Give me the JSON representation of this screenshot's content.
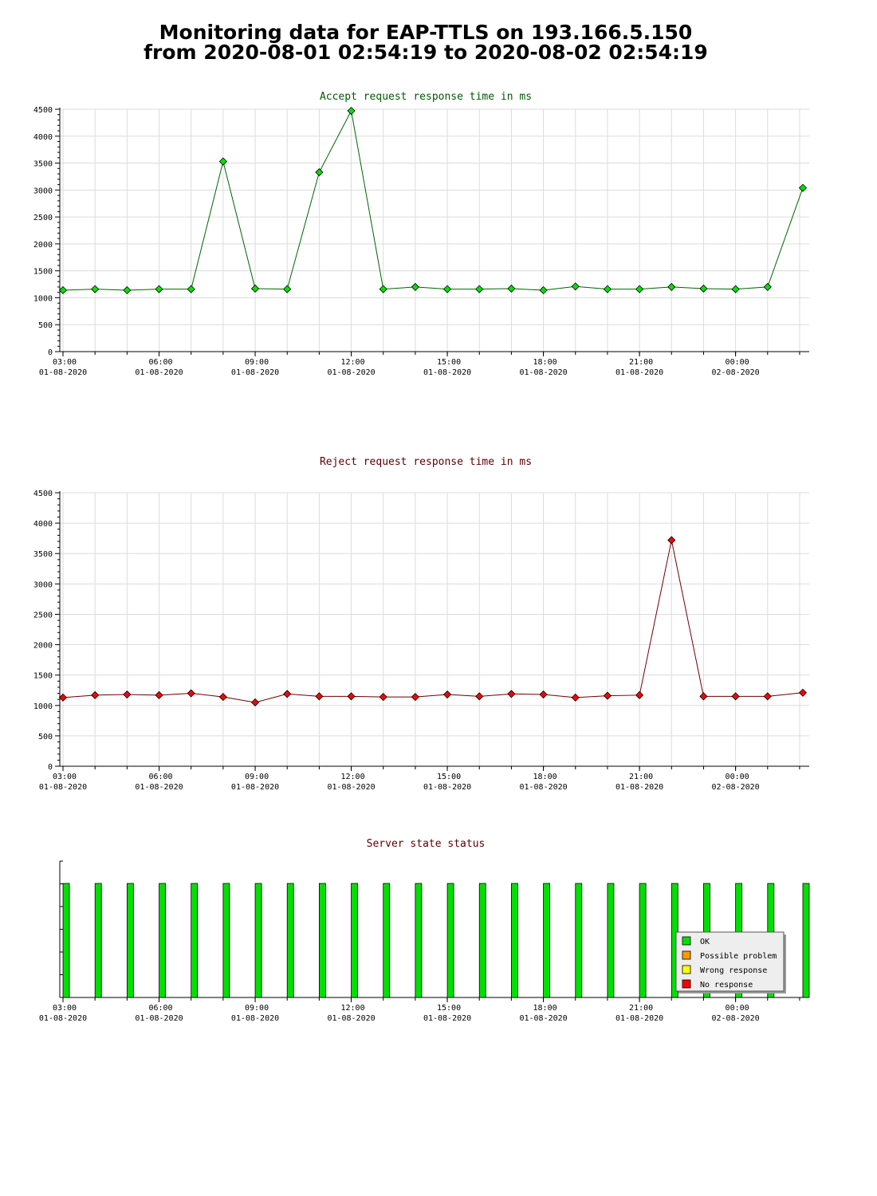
{
  "header": {
    "title_line1": "Monitoring data for EAP-TTLS on 193.166.5.150",
    "title_line2": "from 2020-08-01 02:54:19 to 2020-08-02 02:54:19"
  },
  "colors": {
    "accept_title": "#005a00",
    "accept_line": "#006400",
    "accept_marker": "#00e000",
    "reject_title": "#5a0000",
    "reject_line": "#6a0000",
    "reject_marker": "#ff0000",
    "status_title": "#5a0000",
    "grid": "#dcdcdc",
    "ok": "#00e000",
    "possible_problem": "#ff9900",
    "wrong_response": "#ffff00",
    "no_response": "#ff0000"
  },
  "chart_data": [
    {
      "type": "line",
      "title": "Accept request response time in ms",
      "xlabel": "",
      "ylabel": "",
      "ylim": [
        0,
        4500
      ],
      "yticks": [
        0,
        500,
        1000,
        1500,
        2000,
        2500,
        3000,
        3500,
        4000,
        4500
      ],
      "xlim": [
        2.9,
        26.3
      ],
      "xticks": [
        {
          "x": 3,
          "time": "03:00",
          "date": "01-08-2020"
        },
        {
          "x": 6,
          "time": "06:00",
          "date": "01-08-2020"
        },
        {
          "x": 9,
          "time": "09:00",
          "date": "01-08-2020"
        },
        {
          "x": 12,
          "time": "12:00",
          "date": "01-08-2020"
        },
        {
          "x": 15,
          "time": "15:00",
          "date": "01-08-2020"
        },
        {
          "x": 18,
          "time": "18:00",
          "date": "01-08-2020"
        },
        {
          "x": 21,
          "time": "21:00",
          "date": "01-08-2020"
        },
        {
          "x": 24,
          "time": "00:00",
          "date": "02-08-2020"
        }
      ],
      "grid": true,
      "series": [
        {
          "x": [
            3.0,
            4.0,
            5.0,
            6.0,
            7.0,
            8.0,
            9.0,
            10.0,
            11.0,
            12.0,
            13.0,
            14.0,
            15.0,
            16.0,
            17.0,
            18.0,
            19.0,
            20.0,
            21.0,
            22.0,
            23.0,
            24.0,
            25.0,
            26.1
          ],
          "values": [
            1140,
            1160,
            1140,
            1160,
            1160,
            3530,
            1170,
            1160,
            3330,
            4470,
            1160,
            1200,
            1160,
            1160,
            1170,
            1140,
            1210,
            1160,
            1160,
            1200,
            1170,
            1160,
            1200,
            3040
          ]
        }
      ]
    },
    {
      "type": "line",
      "title": "Reject request response time in ms",
      "xlabel": "",
      "ylabel": "",
      "ylim": [
        0,
        4500
      ],
      "yticks": [
        0,
        500,
        1000,
        1500,
        2000,
        2500,
        3000,
        3500,
        4000,
        4500
      ],
      "xlim": [
        2.9,
        26.3
      ],
      "xticks": [
        {
          "x": 3,
          "time": "03:00",
          "date": "01-08-2020"
        },
        {
          "x": 6,
          "time": "06:00",
          "date": "01-08-2020"
        },
        {
          "x": 9,
          "time": "09:00",
          "date": "01-08-2020"
        },
        {
          "x": 12,
          "time": "12:00",
          "date": "01-08-2020"
        },
        {
          "x": 15,
          "time": "15:00",
          "date": "01-08-2020"
        },
        {
          "x": 18,
          "time": "18:00",
          "date": "01-08-2020"
        },
        {
          "x": 21,
          "time": "21:00",
          "date": "01-08-2020"
        },
        {
          "x": 24,
          "time": "00:00",
          "date": "02-08-2020"
        }
      ],
      "grid": true,
      "series": [
        {
          "x": [
            3.0,
            4.0,
            5.0,
            6.0,
            7.0,
            8.0,
            9.0,
            10.0,
            11.0,
            12.0,
            13.0,
            14.0,
            15.0,
            16.0,
            17.0,
            18.0,
            19.0,
            20.0,
            21.0,
            22.0,
            23.0,
            24.0,
            25.0,
            26.1
          ],
          "values": [
            1130,
            1170,
            1180,
            1170,
            1200,
            1140,
            1050,
            1190,
            1150,
            1150,
            1140,
            1140,
            1180,
            1150,
            1190,
            1180,
            1130,
            1160,
            1170,
            3720,
            1150,
            1150,
            1150,
            1210
          ]
        }
      ]
    },
    {
      "type": "bar",
      "title": "Server state status",
      "xlabel": "",
      "ylabel": "",
      "xlim": [
        2.9,
        26.3
      ],
      "xticks": [
        {
          "x": 3,
          "time": "03:00",
          "date": "01-08-2020"
        },
        {
          "x": 6,
          "time": "06:00",
          "date": "01-08-2020"
        },
        {
          "x": 9,
          "time": "09:00",
          "date": "01-08-2020"
        },
        {
          "x": 12,
          "time": "12:00",
          "date": "01-08-2020"
        },
        {
          "x": 15,
          "time": "15:00",
          "date": "01-08-2020"
        },
        {
          "x": 18,
          "time": "18:00",
          "date": "01-08-2020"
        },
        {
          "x": 21,
          "time": "21:00",
          "date": "01-08-2020"
        },
        {
          "x": 24,
          "time": "00:00",
          "date": "02-08-2020"
        }
      ],
      "grid": false,
      "x": [
        3.1,
        4.1,
        5.1,
        6.1,
        7.1,
        8.1,
        9.1,
        10.1,
        11.1,
        12.1,
        13.1,
        14.1,
        15.1,
        16.1,
        17.1,
        18.1,
        19.1,
        20.1,
        21.1,
        22.1,
        23.1,
        24.1,
        25.1,
        26.2
      ],
      "states": [
        "OK",
        "OK",
        "OK",
        "OK",
        "OK",
        "OK",
        "OK",
        "OK",
        "OK",
        "OK",
        "OK",
        "OK",
        "OK",
        "OK",
        "OK",
        "OK",
        "OK",
        "OK",
        "OK",
        "OK",
        "OK",
        "OK",
        "OK",
        "OK"
      ],
      "legend": {
        "placement": "bottom-right",
        "entries": [
          {
            "label": "OK",
            "color": "#00e000"
          },
          {
            "label": "Possible problem",
            "color": "#ff9900"
          },
          {
            "label": "Wrong response",
            "color": "#ffff00"
          },
          {
            "label": "No response",
            "color": "#ff0000"
          }
        ]
      }
    }
  ]
}
